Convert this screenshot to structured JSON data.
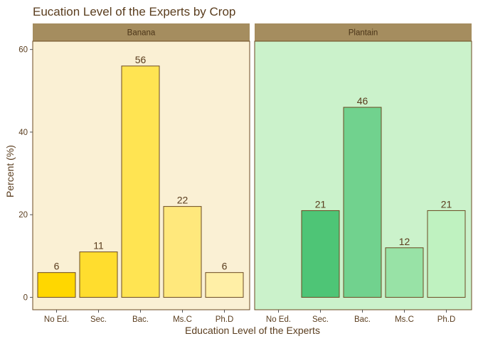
{
  "chart_data": {
    "type": "bar",
    "title": "Eucation Level of the Experts by Crop",
    "xlabel": "Education Level of the Experts",
    "ylabel": "Percent (%)",
    "ylim": [
      -3,
      62
    ],
    "yticks": [
      0,
      20,
      40,
      60
    ],
    "categories": [
      "No Ed.",
      "Sec.",
      "Bac.",
      "Ms.C",
      "Ph.D"
    ],
    "grid": false,
    "legend": "none",
    "panels": [
      {
        "name": "Banana",
        "panel_color": "#FAF0D4",
        "values": [
          6,
          11,
          56,
          22,
          6
        ],
        "bar_colors": [
          "#FFD700",
          "#FFDD2E",
          "#FFE452",
          "#FFE87C",
          "#FFEFA6"
        ]
      },
      {
        "name": "Plantain",
        "panel_color": "#CBF2CB",
        "values": [
          null,
          21,
          46,
          12,
          21
        ],
        "bar_colors": [
          "#3FBF6A",
          "#4EC576",
          "#71D28E",
          "#98E2A6",
          "#BFF2C0"
        ]
      }
    ],
    "colors": {
      "strip_fill": "#A58D5F",
      "panel_border": "#6B4A22",
      "bar_border": "#6B4A22",
      "text": "#5a3d1e"
    }
  }
}
